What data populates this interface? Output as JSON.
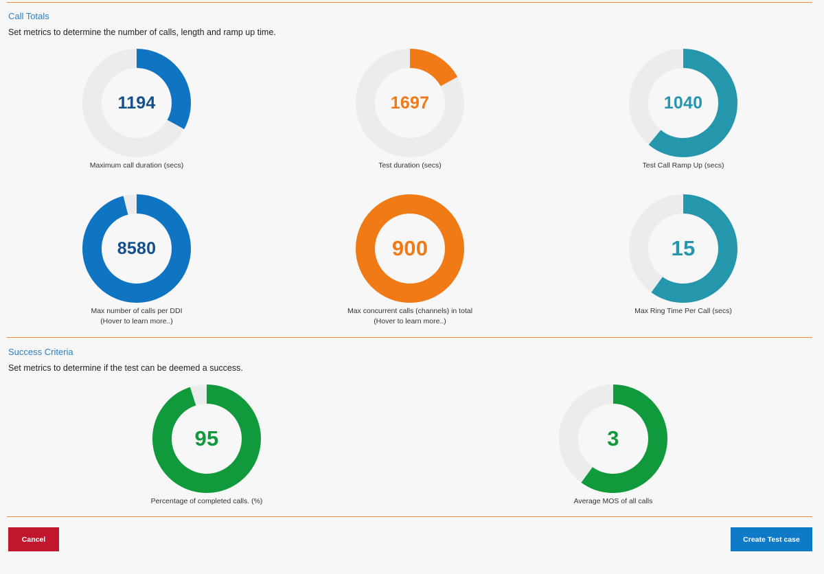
{
  "call_totals": {
    "title": "Call Totals",
    "description": "Set metrics to determine the number of calls, length and ramp up time."
  },
  "success_criteria": {
    "title": "Success Criteria",
    "description": "Set metrics to determine if the test can be deemed a success."
  },
  "gauges": [
    {
      "key": "max-call-duration",
      "value": "1194",
      "fraction": 0.33,
      "color": "#0f75c3",
      "text_color": "#134f8a",
      "label": "Maximum call duration (secs)",
      "hint": ""
    },
    {
      "key": "test-duration",
      "value": "1697",
      "fraction": 0.17,
      "color": "#f07a16",
      "text_color": "#f07a16",
      "label": "Test duration (secs)",
      "hint": ""
    },
    {
      "key": "test-call-ramp-up",
      "value": "1040",
      "fraction": 0.61,
      "color": "#2597ad",
      "text_color": "#2597ad",
      "label": "Test Call Ramp Up (secs)",
      "hint": ""
    },
    {
      "key": "max-calls-per-ddi",
      "value": "8580",
      "fraction": 0.96,
      "color": "#0f75c3",
      "text_color": "#134f8a",
      "label": "Max number of calls per DDI",
      "hint": "(Hover to learn more..)"
    },
    {
      "key": "max-concurrent-calls",
      "value": "900",
      "fraction": 1.0,
      "color": "#f07a16",
      "text_color": "#f07a16",
      "label": "Max concurrent calls (channels) in total",
      "hint": "(Hover to learn more..)"
    },
    {
      "key": "max-ring-time",
      "value": "15",
      "fraction": 0.6,
      "color": "#2597ad",
      "text_color": "#2597ad",
      "label": "Max Ring Time Per Call (secs)",
      "hint": ""
    },
    {
      "key": "completed-calls-percentage",
      "value": "95",
      "fraction": 0.95,
      "color": "#119a3c",
      "text_color": "#119a3c",
      "label": "Percentage of completed calls. (%)",
      "hint": ""
    },
    {
      "key": "average-mos",
      "value": "3",
      "fraction": 0.6,
      "color": "#119a3c",
      "text_color": "#119a3c",
      "label": "Average MOS of all calls",
      "hint": ""
    }
  ],
  "track_color": "#ececec",
  "buttons": {
    "cancel": "Cancel",
    "create": "Create Test case"
  }
}
